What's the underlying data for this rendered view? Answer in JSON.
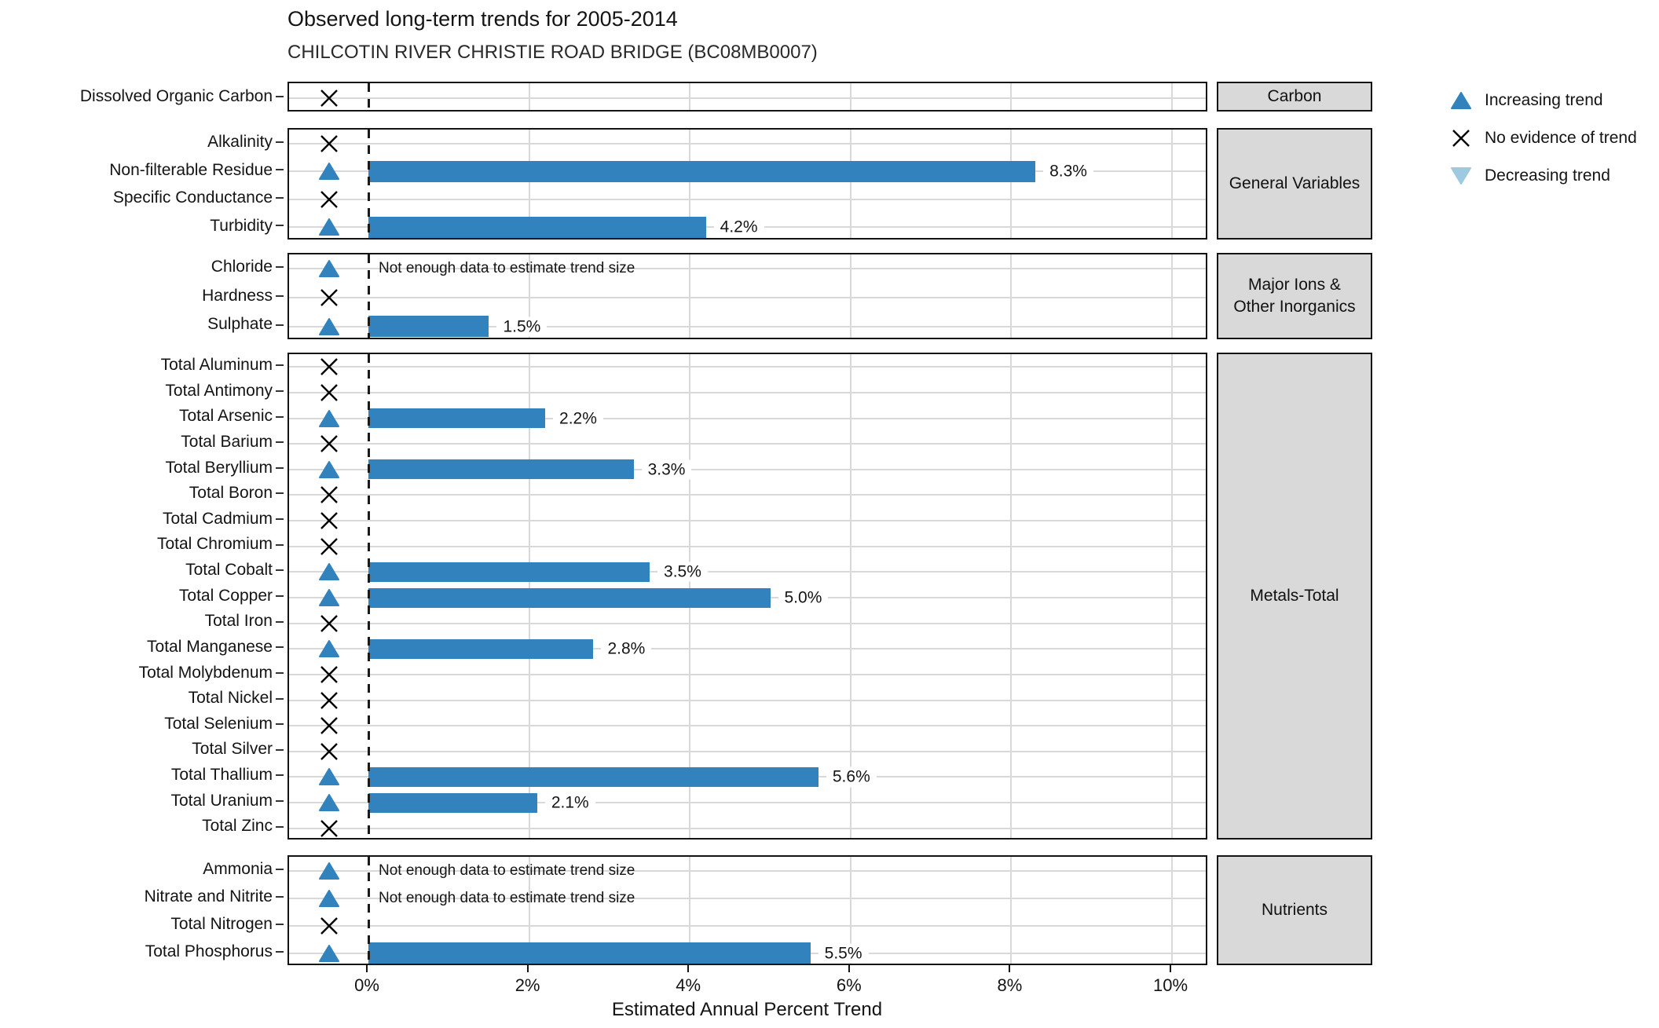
{
  "header": {
    "title": "Observed long-term trends for 2005-2014",
    "subtitle": "CHILCOTIN RIVER CHRISTIE ROAD BRIDGE (BC08MB0007)"
  },
  "axis": {
    "title": "Estimated Annual Percent Trend",
    "ticks": [
      {
        "value": 0,
        "label": "0%"
      },
      {
        "value": 2,
        "label": "2%"
      },
      {
        "value": 4,
        "label": "4%"
      },
      {
        "value": 6,
        "label": "6%"
      },
      {
        "value": 8,
        "label": "8%"
      },
      {
        "value": 10,
        "label": "10%"
      }
    ],
    "range": [
      -1.0,
      10.5
    ],
    "gridlines": "major-vertical-and-row-horizontal"
  },
  "legend": [
    {
      "label": "Increasing trend",
      "marker": "triangle-up-icon",
      "color": "#3182BD"
    },
    {
      "label": "No evidence of trend",
      "marker": "x-icon",
      "color": "#000000"
    },
    {
      "label": "Decreasing trend",
      "marker": "triangle-down-icon",
      "color": "#9ECAE1"
    }
  ],
  "colors": {
    "bar": "#3182BD",
    "increasing": "#3182BD",
    "decreasing": "#9ECAE1",
    "no_trend": "#000000",
    "grid": "#D9D9D9",
    "strip_bg": "#D9D9D9",
    "panel_border": "#141414"
  },
  "chart_data": {
    "type": "bar",
    "orientation": "horizontal",
    "title": "Observed long-term trends for 2005-2014",
    "subtitle": "CHILCOTIN RIVER CHRISTIE ROAD BRIDGE (BC08MB0007)",
    "xlabel": "Estimated Annual Percent Trend",
    "xlim": [
      -1.0,
      10.5
    ],
    "legend_position": "right-top",
    "no_data_note": "Not enough data to estimate trend size",
    "facets": [
      {
        "name": "Carbon",
        "rows": [
          {
            "param": "Dissolved Organic Carbon",
            "trend": "none",
            "value": null,
            "value_label": null,
            "note": null
          }
        ]
      },
      {
        "name": "General Variables",
        "rows": [
          {
            "param": "Alkalinity",
            "trend": "none",
            "value": null,
            "value_label": null,
            "note": null
          },
          {
            "param": "Non-filterable Residue",
            "trend": "increasing",
            "value": 8.3,
            "value_label": "8.3%",
            "note": null
          },
          {
            "param": "Specific Conductance",
            "trend": "none",
            "value": null,
            "value_label": null,
            "note": null
          },
          {
            "param": "Turbidity",
            "trend": "increasing",
            "value": 4.2,
            "value_label": "4.2%",
            "note": null
          }
        ]
      },
      {
        "name": "Major Ions & Other Inorganics",
        "rows": [
          {
            "param": "Chloride",
            "trend": "increasing",
            "value": null,
            "value_label": null,
            "note": "Not enough data to estimate trend size"
          },
          {
            "param": "Hardness",
            "trend": "none",
            "value": null,
            "value_label": null,
            "note": null
          },
          {
            "param": "Sulphate",
            "trend": "increasing",
            "value": 1.5,
            "value_label": "1.5%",
            "note": null
          }
        ]
      },
      {
        "name": "Metals-Total",
        "rows": [
          {
            "param": "Total Aluminum",
            "trend": "none",
            "value": null,
            "value_label": null,
            "note": null
          },
          {
            "param": "Total Antimony",
            "trend": "none",
            "value": null,
            "value_label": null,
            "note": null
          },
          {
            "param": "Total Arsenic",
            "trend": "increasing",
            "value": 2.2,
            "value_label": "2.2%",
            "note": null
          },
          {
            "param": "Total Barium",
            "trend": "none",
            "value": null,
            "value_label": null,
            "note": null
          },
          {
            "param": "Total Beryllium",
            "trend": "increasing",
            "value": 3.3,
            "value_label": "3.3%",
            "note": null
          },
          {
            "param": "Total Boron",
            "trend": "none",
            "value": null,
            "value_label": null,
            "note": null
          },
          {
            "param": "Total Cadmium",
            "trend": "none",
            "value": null,
            "value_label": null,
            "note": null
          },
          {
            "param": "Total Chromium",
            "trend": "none",
            "value": null,
            "value_label": null,
            "note": null
          },
          {
            "param": "Total Cobalt",
            "trend": "increasing",
            "value": 3.5,
            "value_label": "3.5%",
            "note": null
          },
          {
            "param": "Total Copper",
            "trend": "increasing",
            "value": 5.0,
            "value_label": "5.0%",
            "note": null
          },
          {
            "param": "Total Iron",
            "trend": "none",
            "value": null,
            "value_label": null,
            "note": null
          },
          {
            "param": "Total Manganese",
            "trend": "increasing",
            "value": 2.8,
            "value_label": "2.8%",
            "note": null
          },
          {
            "param": "Total Molybdenum",
            "trend": "none",
            "value": null,
            "value_label": null,
            "note": null
          },
          {
            "param": "Total Nickel",
            "trend": "none",
            "value": null,
            "value_label": null,
            "note": null
          },
          {
            "param": "Total Selenium",
            "trend": "none",
            "value": null,
            "value_label": null,
            "note": null
          },
          {
            "param": "Total Silver",
            "trend": "none",
            "value": null,
            "value_label": null,
            "note": null
          },
          {
            "param": "Total Thallium",
            "trend": "increasing",
            "value": 5.6,
            "value_label": "5.6%",
            "note": null
          },
          {
            "param": "Total Uranium",
            "trend": "increasing",
            "value": 2.1,
            "value_label": "2.1%",
            "note": null
          },
          {
            "param": "Total Zinc",
            "trend": "none",
            "value": null,
            "value_label": null,
            "note": null
          }
        ]
      },
      {
        "name": "Nutrients",
        "rows": [
          {
            "param": "Ammonia",
            "trend": "increasing",
            "value": null,
            "value_label": null,
            "note": "Not enough data to estimate trend size"
          },
          {
            "param": "Nitrate and Nitrite",
            "trend": "increasing",
            "value": null,
            "value_label": null,
            "note": "Not enough data to estimate trend size"
          },
          {
            "param": "Total Nitrogen",
            "trend": "none",
            "value": null,
            "value_label": null,
            "note": null
          },
          {
            "param": "Total Phosphorus",
            "trend": "increasing",
            "value": 5.5,
            "value_label": "5.5%",
            "note": null
          }
        ]
      }
    ]
  }
}
